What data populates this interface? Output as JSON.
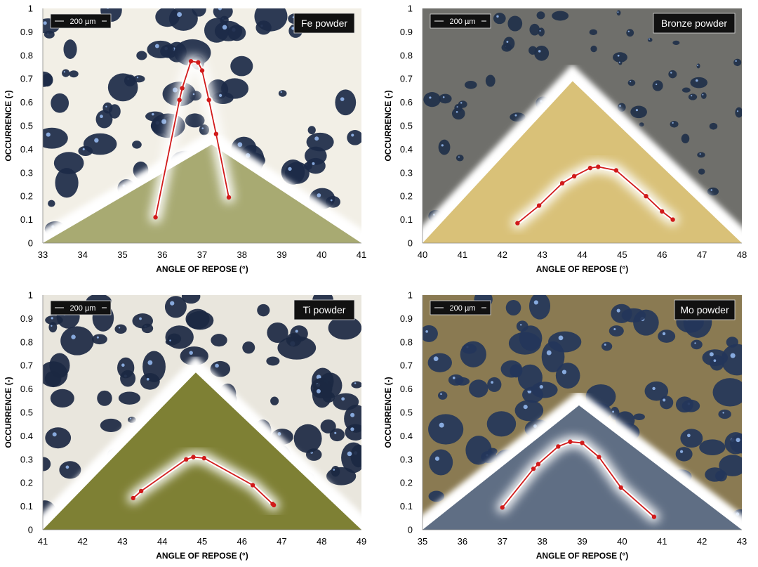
{
  "colors": {
    "line": "#d11a1a",
    "glow": "#ffffff",
    "label_box": "#111111"
  },
  "chart_data": [
    {
      "type": "line",
      "panel_label": "Fe powder",
      "scale_bar": "200 µm",
      "xlabel": "ANGLE OF REPOSE (°)",
      "ylabel": "OCCURRENCE (-)",
      "xlim": [
        33,
        41
      ],
      "ylim": [
        0,
        1
      ],
      "xticks": [
        "33",
        "34",
        "35",
        "36",
        "37",
        "38",
        "39",
        "40",
        "41"
      ],
      "yticks": [
        "0",
        "0.1",
        "0.2",
        "0.3",
        "0.4",
        "0.5",
        "0.6",
        "0.7",
        "0.8",
        "0.9",
        "1"
      ],
      "background": {
        "particles": "#1c2a48",
        "bg": "#f2efe6",
        "pile": "#a8aa72"
      },
      "series": [
        {
          "points": [
            [
              35.83,
              0.11
            ],
            [
              36.43,
              0.61
            ],
            [
              36.5,
              0.66
            ],
            [
              36.72,
              0.775
            ],
            [
              36.9,
              0.77
            ],
            [
              37.0,
              0.735
            ],
            [
              37.17,
              0.61
            ],
            [
              37.35,
              0.465
            ],
            [
              37.67,
              0.195
            ]
          ]
        }
      ]
    },
    {
      "type": "line",
      "panel_label": "Bronze powder",
      "scale_bar": "200 µm",
      "xlabel": "ANGLE OF REPOSE (°)",
      "ylabel": "OCCURRENCE (-)",
      "xlim": [
        40,
        48
      ],
      "ylim": [
        0,
        1
      ],
      "xticks": [
        "40",
        "41",
        "42",
        "43",
        "44",
        "45",
        "46",
        "47",
        "48"
      ],
      "yticks": [
        "0",
        "0.1",
        "0.2",
        "0.3",
        "0.4",
        "0.5",
        "0.6",
        "0.7",
        "0.8",
        "0.9",
        "1"
      ],
      "background": {
        "particles": "#20304a",
        "bg": "#6f6f6b",
        "pile": "#d9c178"
      },
      "series": [
        {
          "points": [
            [
              42.38,
              0.085
            ],
            [
              42.92,
              0.16
            ],
            [
              43.5,
              0.255
            ],
            [
              43.8,
              0.285
            ],
            [
              44.2,
              0.32
            ],
            [
              44.4,
              0.325
            ],
            [
              44.85,
              0.31
            ],
            [
              45.6,
              0.2
            ],
            [
              46.0,
              0.135
            ],
            [
              46.27,
              0.1
            ]
          ]
        }
      ]
    },
    {
      "type": "line",
      "panel_label": "Ti powder",
      "scale_bar": "200 µm",
      "xlabel": "ANGLE OF REPOSE (°)",
      "ylabel": "OCCURRENCE (-)",
      "xlim": [
        41,
        49
      ],
      "ylim": [
        0,
        1
      ],
      "xticks": [
        "41",
        "42",
        "43",
        "44",
        "45",
        "46",
        "47",
        "48",
        "49"
      ],
      "yticks": [
        "0",
        "0.1",
        "0.2",
        "0.3",
        "0.4",
        "0.5",
        "0.6",
        "0.7",
        "0.8",
        "0.9",
        "1"
      ],
      "background": {
        "particles": "#1b2842",
        "bg": "#e9e6dd",
        "pile": "#7e8034"
      },
      "series": [
        {
          "points": [
            [
              43.27,
              0.135
            ],
            [
              43.47,
              0.165
            ],
            [
              44.6,
              0.3
            ],
            [
              44.78,
              0.31
            ],
            [
              45.05,
              0.305
            ],
            [
              46.27,
              0.19
            ],
            [
              46.77,
              0.11
            ],
            [
              46.8,
              0.105
            ]
          ]
        }
      ]
    },
    {
      "type": "line",
      "panel_label": "Mo powder",
      "scale_bar": "200 µm",
      "xlabel": "ANGLE OF REPOSE (°)",
      "ylabel": "OCCURRENCE (-)",
      "xlim": [
        35,
        43
      ],
      "ylim": [
        0,
        1
      ],
      "xticks": [
        "35",
        "36",
        "37",
        "38",
        "39",
        "40",
        "41",
        "42",
        "43"
      ],
      "yticks": [
        "0",
        "0.1",
        "0.2",
        "0.3",
        "0.4",
        "0.5",
        "0.6",
        "0.7",
        "0.8",
        "0.9",
        "1"
      ],
      "background": {
        "particles": "#24365a",
        "bg": "#8a7a52",
        "pile": "#5f6e84"
      },
      "series": [
        {
          "points": [
            [
              37.0,
              0.095
            ],
            [
              37.78,
              0.26
            ],
            [
              37.9,
              0.28
            ],
            [
              38.4,
              0.355
            ],
            [
              38.7,
              0.375
            ],
            [
              39.0,
              0.37
            ],
            [
              39.42,
              0.31
            ],
            [
              39.97,
              0.18
            ],
            [
              40.8,
              0.055
            ]
          ]
        }
      ]
    }
  ]
}
